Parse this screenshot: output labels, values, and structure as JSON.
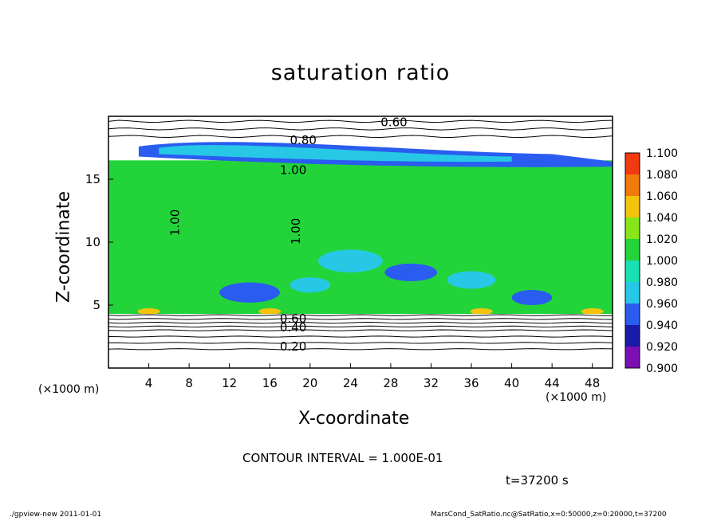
{
  "chart_data": {
    "type": "heatmap",
    "title": "saturation ratio",
    "xlabel": "X-coordinate",
    "ylabel": "Z-coordinate",
    "x_unit_left": "(×1000 m)",
    "x_unit_right": "(×1000 m)",
    "x_ticks": [
      "4",
      "8",
      "12",
      "16",
      "20",
      "24",
      "28",
      "32",
      "36",
      "40",
      "44",
      "48"
    ],
    "y_ticks": [
      "5",
      "10",
      "15"
    ],
    "xlim": [
      0,
      50
    ],
    "ylim": [
      0,
      20
    ],
    "colorbar": {
      "levels": [
        "0.900",
        "0.920",
        "0.940",
        "0.960",
        "0.980",
        "1.000",
        "1.020",
        "1.040",
        "1.060",
        "1.080",
        "1.100"
      ],
      "colors": [
        "#7a0fb4",
        "#1a1aa8",
        "#2a5cf0",
        "#26c8e6",
        "#18e0b0",
        "#22d43a",
        "#86e61a",
        "#f2c50c",
        "#f07a0a",
        "#f23a10",
        "#f2a0a0"
      ]
    },
    "contour_labels": [
      "0.60",
      "0.80",
      "1.00",
      "1.00",
      "1.00",
      "0.60",
      "0.40",
      "0.20"
    ],
    "contour_interval": "CONTOUR INTERVAL = 1.000E-01",
    "time": "t=37200 s"
  },
  "footer": {
    "left": "./gpview-new   2011-01-01",
    "right": "MarsCond_SatRatio.nc@SatRatio,x=0:50000,z=0:20000,t=37200"
  }
}
